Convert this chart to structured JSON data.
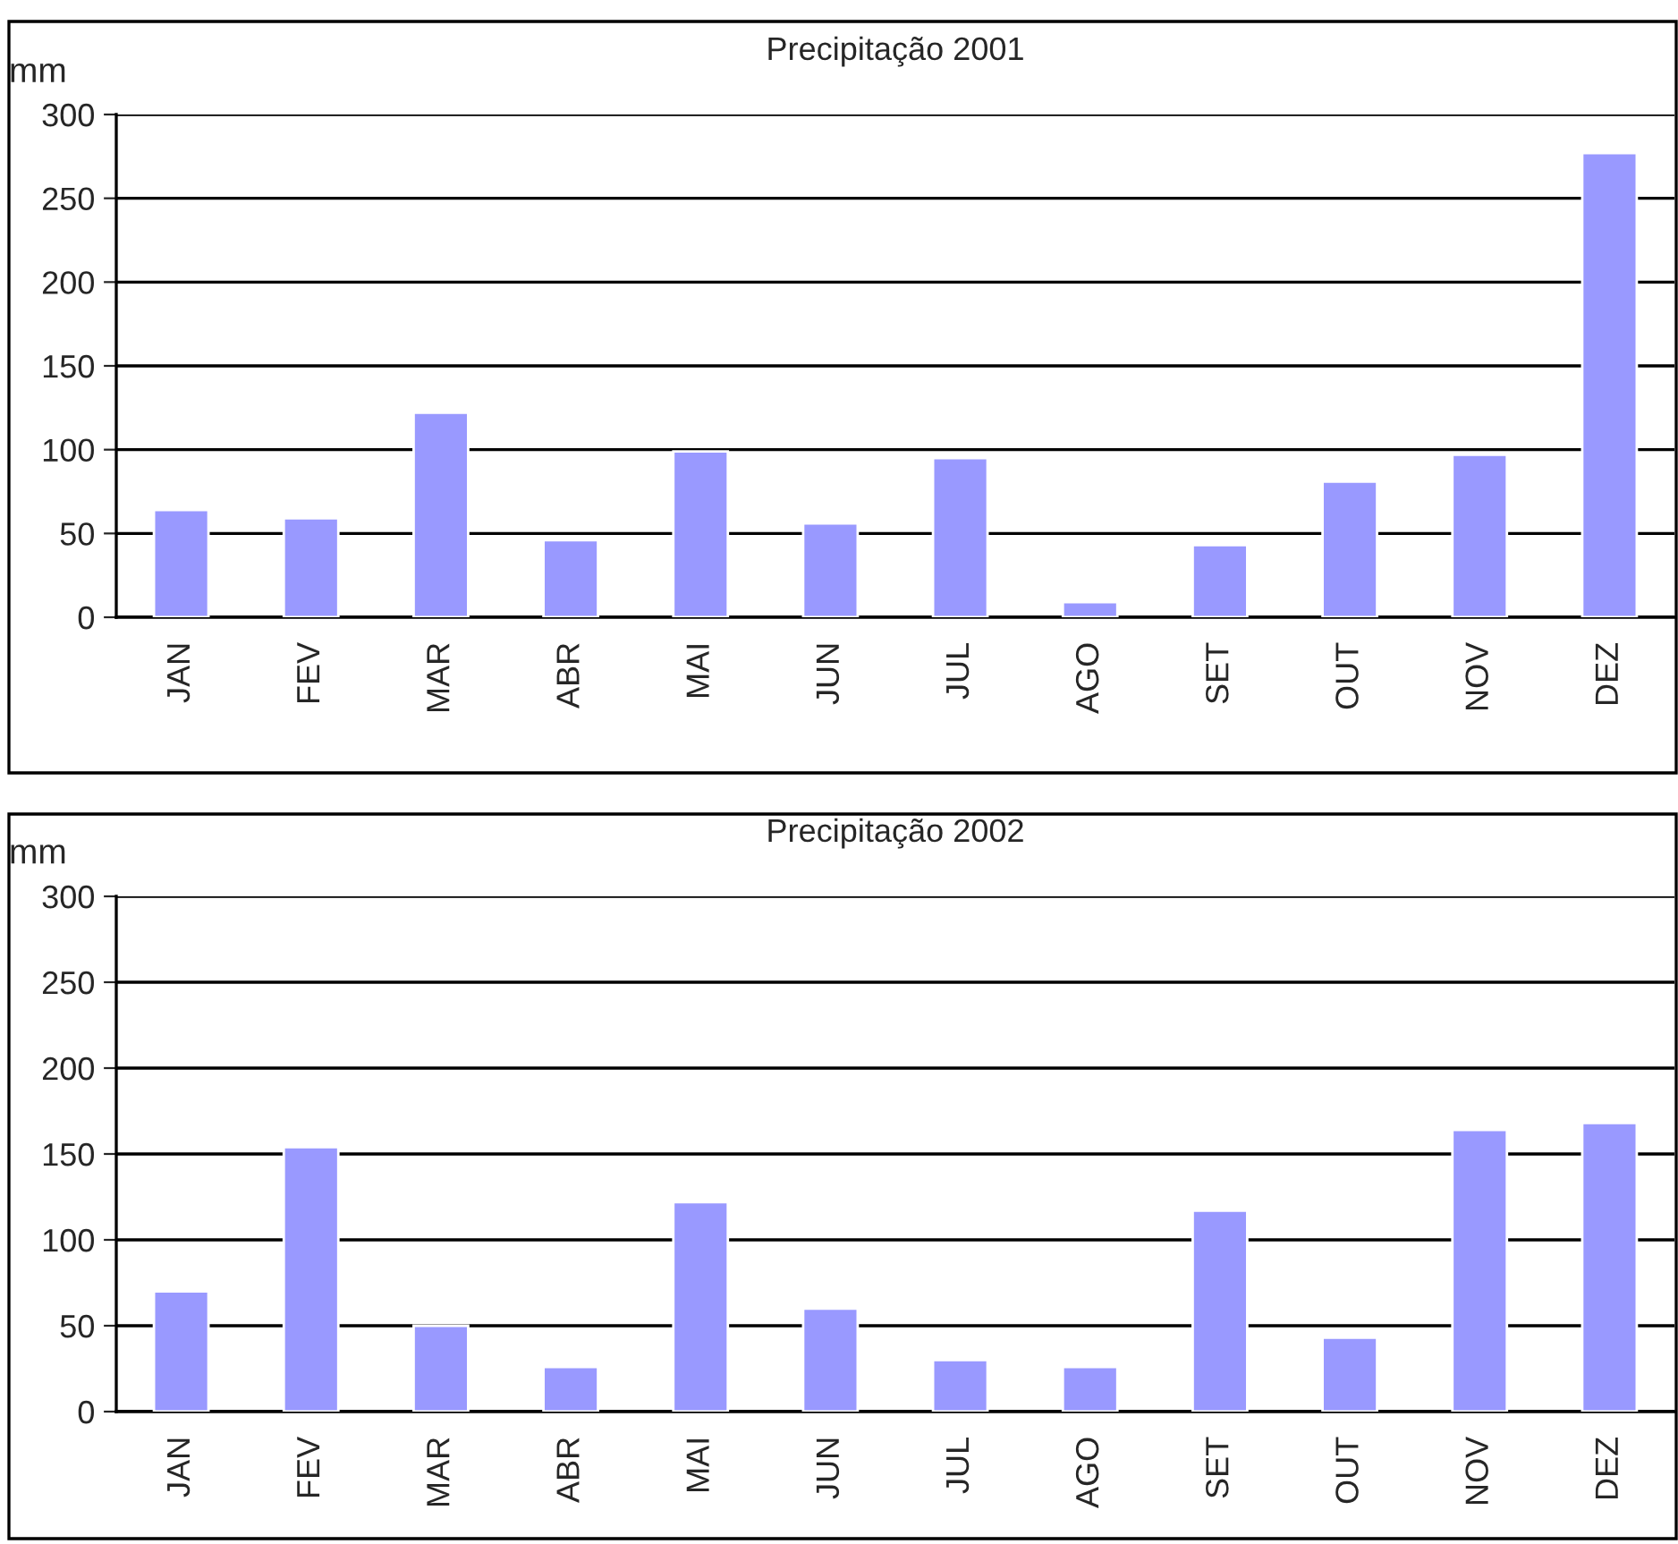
{
  "chart_data": [
    {
      "type": "bar",
      "title": "Precipitação 2001",
      "ylabel": "mm",
      "categories": [
        "JAN",
        "FEV",
        "MAR",
        "ABR",
        "MAI",
        "JUN",
        "JUL",
        "AGO",
        "SET",
        "OUT",
        "NOV",
        "DEZ"
      ],
      "values": [
        64,
        59,
        122,
        46,
        99,
        56,
        95,
        9,
        43,
        81,
        97,
        277
      ],
      "color": "#9999ff",
      "ylim": [
        0,
        300
      ],
      "yticks": [
        0,
        50,
        100,
        150,
        200,
        250,
        300
      ],
      "grid": "y"
    },
    {
      "type": "bar",
      "title": "Precipitação 2002",
      "ylabel": "mm",
      "categories": [
        "JAN",
        "FEV",
        "MAR",
        "ABR",
        "MAI",
        "JUN",
        "JUL",
        "AGO",
        "SET",
        "OUT",
        "NOV",
        "DEZ"
      ],
      "values": [
        70,
        154,
        50,
        26,
        122,
        60,
        30,
        26,
        117,
        43,
        164,
        168
      ],
      "color": "#9999ff",
      "ylim": [
        0,
        300
      ],
      "yticks": [
        0,
        50,
        100,
        150,
        200,
        250,
        300
      ],
      "grid": "y"
    }
  ]
}
